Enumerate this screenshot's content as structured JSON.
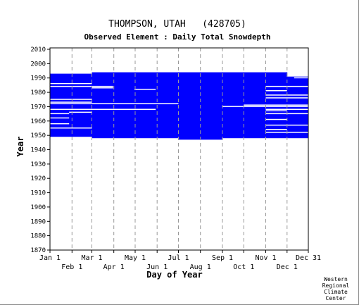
{
  "chart_data": {
    "type": "heatmap",
    "title": "THOMPSON, UTAH   (428705)",
    "subtitle": "Observed Element : Daily Total Snowdepth",
    "xlabel": "Day of Year",
    "ylabel": "Year",
    "x_ticks_row1": [
      "Jan 1",
      "Mar 1",
      "May 1",
      "Jul 1",
      "Sep 1",
      "Nov 1",
      "Dec 31"
    ],
    "x_ticks_row2": [
      "Feb 1",
      "Apr 1",
      "Jun 1",
      "Aug 1",
      "Oct 1",
      "Dec 1"
    ],
    "x_range_day_of_year": [
      1,
      365
    ],
    "month_start_days": [
      1,
      32,
      60,
      91,
      121,
      152,
      182,
      213,
      244,
      274,
      305,
      335,
      365
    ],
    "y_ticks": [
      2010,
      2000,
      1990,
      1980,
      1970,
      1960,
      1950,
      1940,
      1930,
      1920,
      1910,
      1900,
      1890,
      1880,
      1870
    ],
    "ylim": [
      1870,
      2011
    ],
    "record_color": "#0000ff",
    "grid": "dashed vertical at month starts",
    "record_period_by_season": [
      {
        "from_day": 1,
        "to_day": 60,
        "start_year": 1949,
        "end_year": 1993
      },
      {
        "from_day": 60,
        "to_day": 182,
        "start_year": 1948,
        "end_year": 1994
      },
      {
        "from_day": 182,
        "to_day": 244,
        "start_year": 1947,
        "end_year": 1994
      },
      {
        "from_day": 244,
        "to_day": 305,
        "start_year": 1948,
        "end_year": 1994
      },
      {
        "from_day": 305,
        "to_day": 335,
        "start_year": 1948,
        "end_year": 1994
      },
      {
        "from_day": 335,
        "to_day": 365,
        "start_year": 1948,
        "end_year": 1991
      }
    ],
    "missing_records": [
      {
        "year": 1986,
        "from_day": 1,
        "to_day": 60
      },
      {
        "year": 1984,
        "from_day": 1,
        "to_day": 90
      },
      {
        "year": 1983,
        "from_day": 60,
        "to_day": 90
      },
      {
        "year": 1975,
        "from_day": 1,
        "to_day": 60
      },
      {
        "year": 1973,
        "from_day": 1,
        "to_day": 60
      },
      {
        "year": 1972,
        "from_day": 1,
        "to_day": 182
      },
      {
        "year": 1968,
        "from_day": 1,
        "to_day": 150
      },
      {
        "year": 1966,
        "from_day": 28,
        "to_day": 60
      },
      {
        "year": 1965,
        "from_day": 1,
        "to_day": 28
      },
      {
        "year": 1962,
        "from_day": 1,
        "to_day": 28
      },
      {
        "year": 1958,
        "from_day": 1,
        "to_day": 28
      },
      {
        "year": 1955,
        "from_day": 1,
        "to_day": 60
      },
      {
        "year": 1982,
        "from_day": 120,
        "to_day": 150
      },
      {
        "year": 1970,
        "from_day": 244,
        "to_day": 274
      },
      {
        "year": 1984,
        "from_day": 305,
        "to_day": 365
      },
      {
        "year": 1981,
        "from_day": 305,
        "to_day": 335
      },
      {
        "year": 1978,
        "from_day": 305,
        "to_day": 365
      },
      {
        "year": 1976,
        "from_day": 305,
        "to_day": 365
      },
      {
        "year": 1971,
        "from_day": 274,
        "to_day": 365
      },
      {
        "year": 1970,
        "from_day": 274,
        "to_day": 365
      },
      {
        "year": 1968,
        "from_day": 305,
        "to_day": 365
      },
      {
        "year": 1967,
        "from_day": 305,
        "to_day": 335
      },
      {
        "year": 1965,
        "from_day": 305,
        "to_day": 365
      },
      {
        "year": 1961,
        "from_day": 305,
        "to_day": 335
      },
      {
        "year": 1957,
        "from_day": 305,
        "to_day": 365
      },
      {
        "year": 1954,
        "from_day": 305,
        "to_day": 335
      },
      {
        "year": 1952,
        "from_day": 305,
        "to_day": 365
      },
      {
        "year": 1990,
        "from_day": 345,
        "to_day": 365
      }
    ]
  },
  "credit": [
    "Western",
    "Regional",
    "Climate",
    "Center"
  ]
}
